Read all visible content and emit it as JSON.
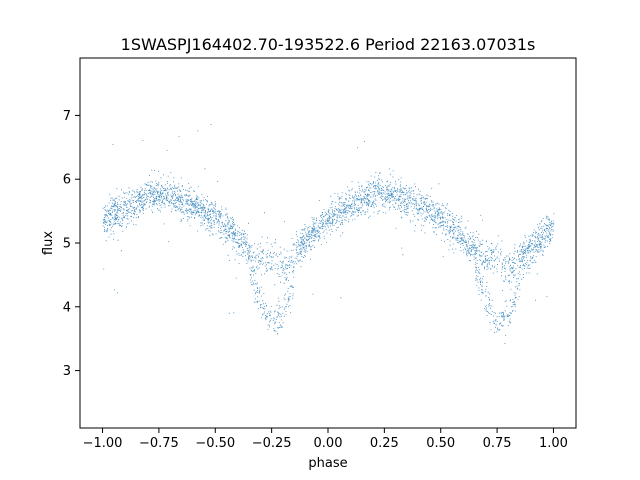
{
  "chart_data": {
    "type": "scatter",
    "title": "1SWASPJ164402.70-193522.6 Period 22163.07031s",
    "xlabel": "phase",
    "ylabel": "flux",
    "xlim": [
      -1.1,
      1.1
    ],
    "ylim": [
      2.1,
      7.9
    ],
    "xticks": [
      -1.0,
      -0.75,
      -0.5,
      -0.25,
      0.0,
      0.25,
      0.5,
      0.75,
      1.0
    ],
    "xtick_labels": [
      "−1.00",
      "−0.75",
      "−0.50",
      "−0.25",
      "0.00",
      "0.25",
      "0.50",
      "0.75",
      "1.00"
    ],
    "yticks": [
      3,
      4,
      5,
      6,
      7
    ],
    "ytick_labels": [
      "3",
      "4",
      "5",
      "6",
      "7"
    ],
    "grid": false,
    "color": "#1f77b4",
    "series": [
      {
        "description_values": "phase-folded light curve, mean flux vs phase",
        "x": [
          -1.0,
          -0.9,
          -0.8,
          -0.75,
          -0.7,
          -0.6,
          -0.5,
          -0.4,
          -0.3,
          -0.25,
          -0.2,
          -0.1,
          0.0,
          0.1,
          0.2,
          0.25,
          0.3,
          0.4,
          0.5,
          0.6,
          0.7,
          0.75,
          0.8,
          0.9,
          1.0
        ],
        "y": [
          5.35,
          5.55,
          5.75,
          5.78,
          5.75,
          5.6,
          5.4,
          5.05,
          4.7,
          4.75,
          4.6,
          5.05,
          5.4,
          5.6,
          5.75,
          5.8,
          5.75,
          5.6,
          5.4,
          5.05,
          4.75,
          4.8,
          4.6,
          4.9,
          5.3
        ]
      },
      {
        "description_values": "secondary branch in eclipse dips",
        "x": [
          -0.35,
          -0.3,
          -0.25,
          -0.2,
          -0.15,
          0.65,
          0.7,
          0.75,
          0.8,
          0.85
        ],
        "y": [
          4.6,
          4.1,
          3.75,
          3.9,
          4.4,
          4.6,
          4.1,
          3.75,
          3.9,
          4.4
        ]
      }
    ]
  }
}
